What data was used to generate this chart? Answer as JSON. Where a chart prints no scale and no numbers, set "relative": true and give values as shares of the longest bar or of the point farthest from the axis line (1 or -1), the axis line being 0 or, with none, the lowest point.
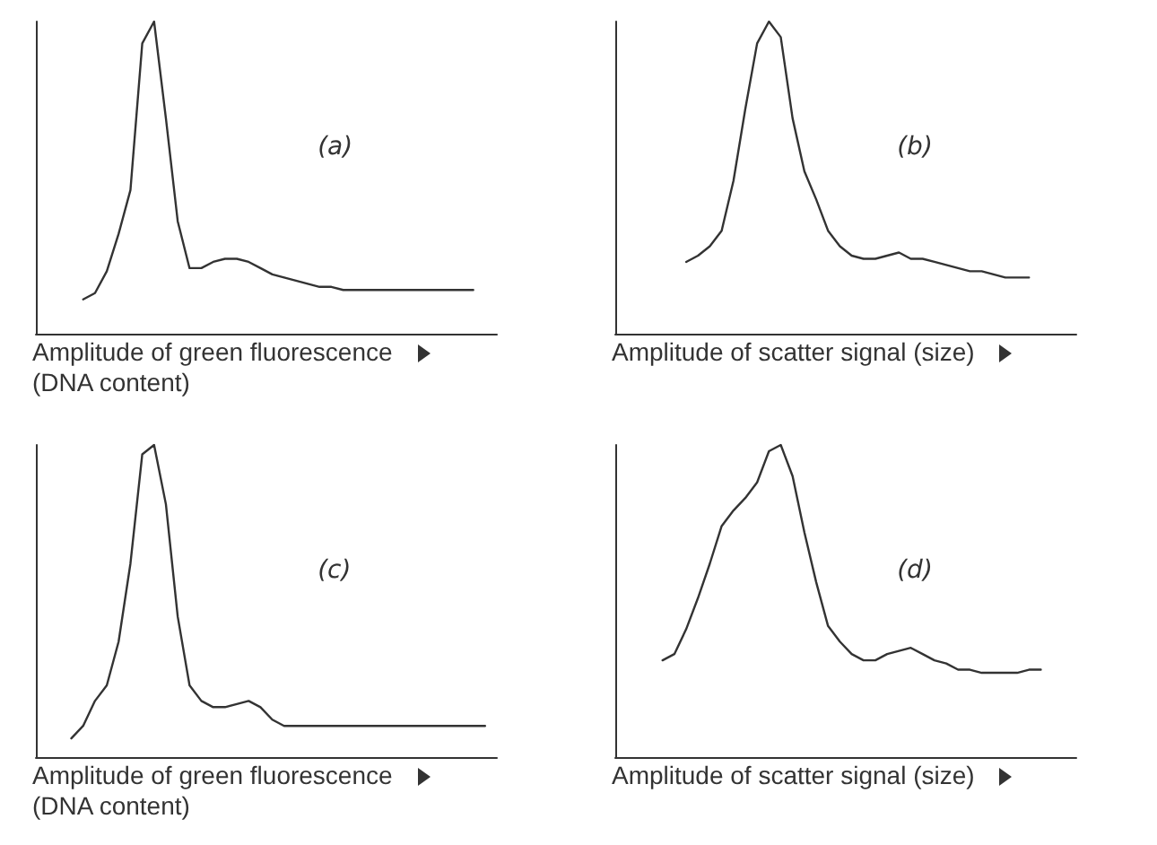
{
  "chart_data": [
    {
      "type": "line",
      "relative": true,
      "xlabel": "Amplitude of green fluorescence\n(DNA content)",
      "annotations": [
        "(a)"
      ],
      "color": "#333333",
      "tick_labels": false,
      "categories": [
        null,
        null,
        null,
        null,
        null,
        null,
        null,
        null,
        null,
        null,
        null,
        null,
        null,
        null,
        null,
        null,
        null,
        null,
        null,
        null,
        null,
        null,
        null,
        null,
        null,
        null,
        null,
        null,
        null,
        null,
        null,
        null,
        null,
        null,
        null,
        null,
        null,
        null,
        null,
        null
      ],
      "values": [
        null,
        null,
        null,
        null,
        0.11,
        0.13,
        0.2,
        0.32,
        0.46,
        0.93,
        1,
        0.69,
        0.36,
        0.21,
        0.21,
        0.23,
        0.24,
        0.24,
        0.23,
        0.21,
        0.19,
        0.18,
        0.17,
        0.16,
        0.15,
        0.15,
        0.14,
        0.14,
        0.14,
        0.14,
        0.14,
        0.14,
        0.14,
        0.14,
        0.14,
        0.14,
        0.14,
        0.14,
        null,
        null
      ]
    },
    {
      "type": "line",
      "relative": true,
      "xlabel": "Amplitude of scatter signal (size)",
      "annotations": [
        "(b)"
      ],
      "color": "#333333",
      "tick_labels": false,
      "categories": [
        null,
        null,
        null,
        null,
        null,
        null,
        null,
        null,
        null,
        null,
        null,
        null,
        null,
        null,
        null,
        null,
        null,
        null,
        null,
        null,
        null,
        null,
        null,
        null,
        null,
        null,
        null,
        null,
        null,
        null,
        null,
        null,
        null,
        null,
        null,
        null,
        null,
        null,
        null,
        null
      ],
      "values": [
        null,
        null,
        null,
        null,
        null,
        null,
        0.23,
        0.25,
        0.28,
        0.33,
        0.49,
        0.72,
        0.93,
        1,
        0.95,
        0.69,
        0.52,
        0.43,
        0.33,
        0.28,
        0.25,
        0.24,
        0.24,
        0.25,
        0.26,
        0.24,
        0.24,
        0.23,
        0.22,
        0.21,
        0.2,
        0.2,
        0.19,
        0.18,
        0.18,
        0.18,
        null,
        null,
        null,
        null
      ]
    },
    {
      "type": "line",
      "relative": true,
      "xlabel": "Amplitude of green fluorescence\n(DNA content)",
      "annotations": [
        "(c)"
      ],
      "color": "#333333",
      "tick_labels": false,
      "categories": [
        null,
        null,
        null,
        null,
        null,
        null,
        null,
        null,
        null,
        null,
        null,
        null,
        null,
        null,
        null,
        null,
        null,
        null,
        null,
        null,
        null,
        null,
        null,
        null,
        null,
        null,
        null,
        null,
        null,
        null,
        null,
        null,
        null,
        null,
        null,
        null,
        null,
        null,
        null,
        null
      ],
      "values": [
        null,
        null,
        null,
        0.06,
        0.1,
        0.18,
        0.23,
        0.37,
        0.62,
        0.97,
        1,
        0.81,
        0.45,
        0.23,
        0.18,
        0.16,
        0.16,
        0.17,
        0.18,
        0.16,
        0.12,
        0.1,
        0.1,
        0.1,
        0.1,
        0.1,
        0.1,
        0.1,
        0.1,
        0.1,
        0.1,
        0.1,
        0.1,
        0.1,
        0.1,
        0.1,
        0.1,
        0.1,
        0.1,
        null
      ]
    },
    {
      "type": "line",
      "relative": true,
      "xlabel": "Amplitude of scatter signal (size)",
      "annotations": [
        "(d)"
      ],
      "color": "#333333",
      "tick_labels": false,
      "categories": [
        null,
        null,
        null,
        null,
        null,
        null,
        null,
        null,
        null,
        null,
        null,
        null,
        null,
        null,
        null,
        null,
        null,
        null,
        null,
        null,
        null,
        null,
        null,
        null,
        null,
        null,
        null,
        null,
        null,
        null,
        null,
        null,
        null,
        null,
        null,
        null,
        null,
        null,
        null,
        null
      ],
      "values": [
        null,
        null,
        null,
        null,
        0.31,
        0.33,
        0.41,
        0.51,
        0.62,
        0.74,
        0.79,
        0.83,
        0.88,
        0.98,
        1,
        0.9,
        0.72,
        0.56,
        0.42,
        0.37,
        0.33,
        0.31,
        0.31,
        0.33,
        0.34,
        0.35,
        0.33,
        0.31,
        0.3,
        0.28,
        0.28,
        0.27,
        0.27,
        0.27,
        0.27,
        0.28,
        0.28,
        null,
        null,
        null
      ]
    }
  ]
}
